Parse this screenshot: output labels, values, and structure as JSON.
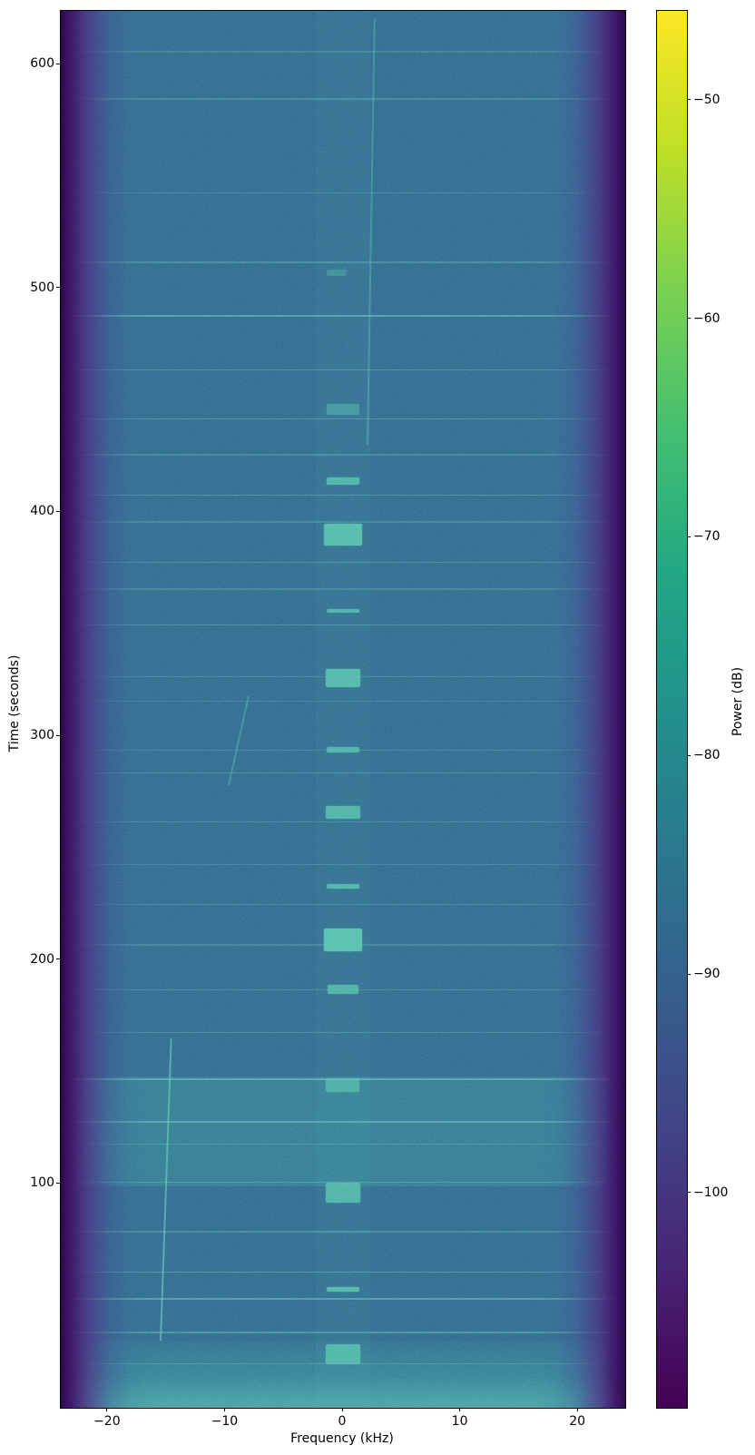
{
  "axes": {
    "xlabel": "Frequency (kHz)",
    "ylabel": "Time (seconds)",
    "x_ticks": [
      {
        "value": -20,
        "label": "−20"
      },
      {
        "value": -10,
        "label": "−10"
      },
      {
        "value": 0,
        "label": "0"
      },
      {
        "value": 10,
        "label": "10"
      },
      {
        "value": 20,
        "label": "20"
      }
    ],
    "y_ticks": [
      {
        "value": 100,
        "label": "100"
      },
      {
        "value": 200,
        "label": "200"
      },
      {
        "value": 300,
        "label": "300"
      },
      {
        "value": 400,
        "label": "400"
      },
      {
        "value": 500,
        "label": "500"
      },
      {
        "value": 600,
        "label": "600"
      }
    ]
  },
  "colorbar": {
    "label": "Power (dB)",
    "colormap": "viridis",
    "vmin": -109.8,
    "vmax": -45.9,
    "ticks": [
      {
        "value": -50,
        "label": "−50"
      },
      {
        "value": -60,
        "label": "−60"
      },
      {
        "value": -70,
        "label": "−70"
      },
      {
        "value": -80,
        "label": "−80"
      },
      {
        "value": -90,
        "label": "−90"
      },
      {
        "value": -100,
        "label": "−100"
      }
    ]
  },
  "chart_data": {
    "type": "heatmap",
    "subtype": "spectrogram-waterfall",
    "title": "",
    "xlabel": "Frequency (kHz)",
    "ylabel": "Time (seconds)",
    "colorbar_label": "Power (dB)",
    "x_range_khz": [
      -24,
      24
    ],
    "y_range_s": [
      0,
      624
    ],
    "power_db_range": [
      -109.8,
      -45.9
    ],
    "background_level_db": -90,
    "band_edge_level_db": -108,
    "band_edge_rolloff_khz": [
      -20.5,
      20.5
    ],
    "features": {
      "center_bursts": [
        {
          "t": 24,
          "dur": 9,
          "f_lo": -1.5,
          "f_hi": 1.5,
          "level_db": -74,
          "strength": 0.75
        },
        {
          "t": 53,
          "dur": 2,
          "f_lo": -1.4,
          "f_hi": 1.4,
          "level_db": -72,
          "strength": 0.8
        },
        {
          "t": 96,
          "dur": 9,
          "f_lo": -1.5,
          "f_hi": 1.5,
          "level_db": -74,
          "strength": 0.75
        },
        {
          "t": 144,
          "dur": 6,
          "f_lo": -1.5,
          "f_hi": 1.4,
          "level_db": -76,
          "strength": 0.6
        },
        {
          "t": 187,
          "dur": 4,
          "f_lo": -1.3,
          "f_hi": 1.3,
          "level_db": -74,
          "strength": 0.7
        },
        {
          "t": 209,
          "dur": 10,
          "f_lo": -1.6,
          "f_hi": 1.6,
          "level_db": -70,
          "strength": 0.9
        },
        {
          "t": 233,
          "dur": 2,
          "f_lo": -1.4,
          "f_hi": 1.4,
          "level_db": -73,
          "strength": 0.75
        },
        {
          "t": 266,
          "dur": 6,
          "f_lo": -1.5,
          "f_hi": 1.5,
          "level_db": -73,
          "strength": 0.75
        },
        {
          "t": 294,
          "dur": 2.5,
          "f_lo": -1.4,
          "f_hi": 1.4,
          "level_db": -74,
          "strength": 0.7
        },
        {
          "t": 326,
          "dur": 8,
          "f_lo": -1.5,
          "f_hi": 1.5,
          "level_db": -72,
          "strength": 0.8
        },
        {
          "t": 356,
          "dur": 2,
          "f_lo": -1.4,
          "f_hi": 1.4,
          "level_db": -74,
          "strength": 0.7
        },
        {
          "t": 390,
          "dur": 10,
          "f_lo": -1.6,
          "f_hi": 1.6,
          "level_db": -70,
          "strength": 0.85
        },
        {
          "t": 414,
          "dur": 3,
          "f_lo": -1.4,
          "f_hi": 1.4,
          "level_db": -73,
          "strength": 0.75
        },
        {
          "t": 446,
          "dur": 5,
          "f_lo": -1.4,
          "f_hi": 1.4,
          "level_db": -80,
          "strength": 0.4
        },
        {
          "t": 507,
          "dur": 3,
          "f_lo": -1.4,
          "f_hi": 0.3,
          "level_db": -82,
          "strength": 0.3
        }
      ],
      "wideband_bands": [
        {
          "t_start": 99,
          "t_end": 148,
          "level_db": -85,
          "strength": 0.2,
          "gradient": false
        },
        {
          "t_start": 0,
          "t_end": 30,
          "level_db": -82,
          "strength": 0.48,
          "gradient": true
        }
      ],
      "artifact_lines": [
        {
          "t": 606,
          "s": 0.18
        },
        {
          "t": 585,
          "s": 0.22
        },
        {
          "t": 543,
          "s": 0.2
        },
        {
          "t": 512,
          "s": 0.25
        },
        {
          "t": 488,
          "s": 0.45
        },
        {
          "t": 464,
          "s": 0.3
        },
        {
          "t": 442,
          "s": 0.3
        },
        {
          "t": 426,
          "s": 0.22
        },
        {
          "t": 408,
          "s": 0.3
        },
        {
          "t": 396,
          "s": 0.2
        },
        {
          "t": 378,
          "s": 0.28
        },
        {
          "t": 366,
          "s": 0.2
        },
        {
          "t": 350,
          "s": 0.3
        },
        {
          "t": 327,
          "s": 0.22
        },
        {
          "t": 316,
          "s": 0.18
        },
        {
          "t": 294,
          "s": 0.2
        },
        {
          "t": 284,
          "s": 0.25
        },
        {
          "t": 262,
          "s": 0.22
        },
        {
          "t": 243,
          "s": 0.2
        },
        {
          "t": 225,
          "s": 0.22
        },
        {
          "t": 207,
          "s": 0.2
        },
        {
          "t": 187,
          "s": 0.22
        },
        {
          "t": 168,
          "s": 0.25
        },
        {
          "t": 147,
          "s": 0.45
        },
        {
          "t": 128,
          "s": 0.4
        },
        {
          "t": 118,
          "s": 0.25
        },
        {
          "t": 101,
          "s": 0.3
        },
        {
          "t": 79,
          "s": 0.25
        },
        {
          "t": 61,
          "s": 0.35
        },
        {
          "t": 49,
          "s": 0.4
        },
        {
          "t": 34,
          "s": 0.3
        },
        {
          "t": 20,
          "s": 0.25
        }
      ],
      "drift_lines": [
        {
          "f_start": -15.6,
          "t_start": 30,
          "f_end": -14.7,
          "t_end": 165,
          "strength": 0.55
        },
        {
          "f_start": -9.8,
          "t_start": 278,
          "f_end": -8.1,
          "t_end": 318,
          "strength": 0.3
        },
        {
          "f_start": 2.0,
          "t_start": 430,
          "f_end": 2.6,
          "t_end": 620,
          "strength": 0.3
        }
      ],
      "center_strip": {
        "f_lo": -2.3,
        "f_hi": 2.3,
        "strength": 0.05
      }
    },
    "colors": {
      "background_hex": "#316787",
      "edge_dark_hex": "#2a0846",
      "burst_hex": "#56c6aa",
      "band_hex": "#48baaa",
      "line_hex": "#7cd4c4",
      "viridis_top_hex": "#fde725",
      "viridis_bottom_hex": "#440154"
    }
  }
}
